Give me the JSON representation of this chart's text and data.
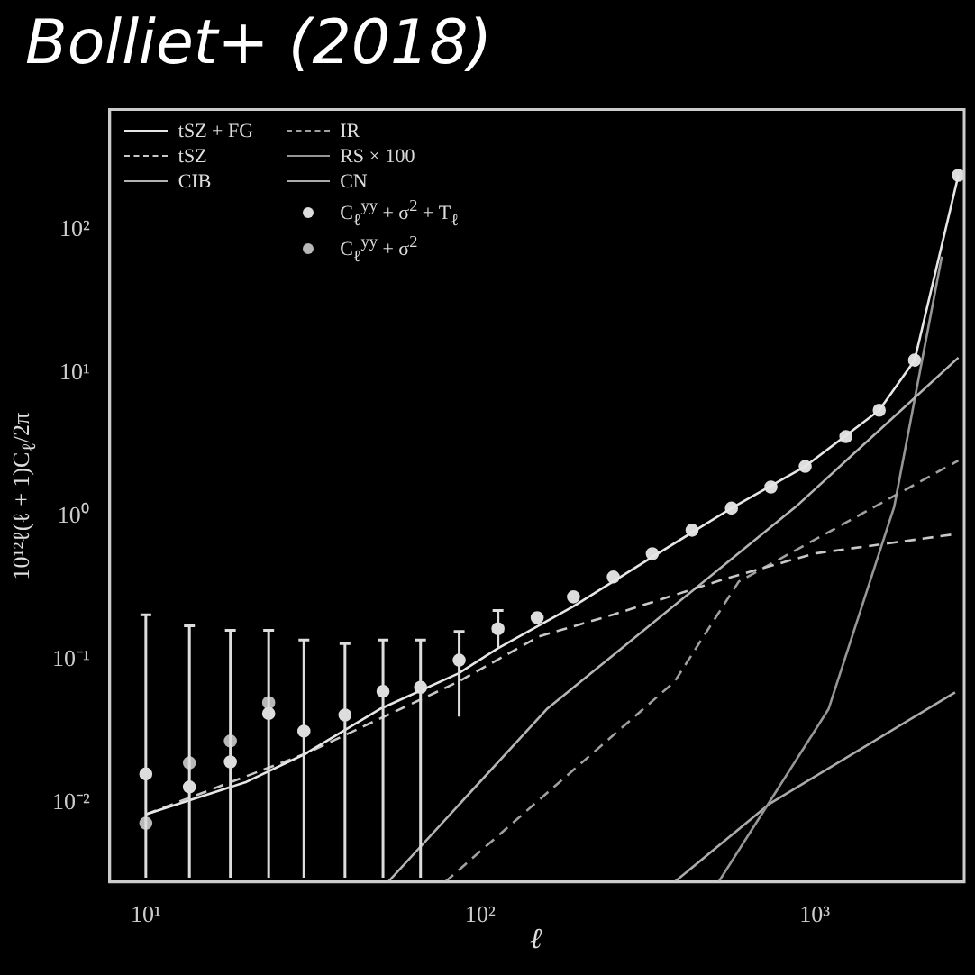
{
  "chart_data": {
    "type": "line",
    "title": "Bolliet+ (2018)",
    "xlabel": "ℓ",
    "ylabel": "10¹²ℓ(ℓ + 1)C$_{ℓ}$/2π",
    "log": "xy",
    "legend": "top left",
    "marker": "none",
    "xlim": [
      7.8,
      2800
    ],
    "ylim": [
      0.0028,
      690
    ],
    "xticks": [
      {
        "value": 10,
        "label": "10¹"
      },
      {
        "value": 100,
        "label": "10²"
      },
      {
        "value": 1000,
        "label": "10³"
      }
    ],
    "yticks": [
      {
        "value": 0.01,
        "label": "10⁻²"
      },
      {
        "value": 0.1,
        "label": "10⁻¹"
      },
      {
        "value": 1,
        "label": "10⁰"
      },
      {
        "value": 10,
        "label": "10¹"
      },
      {
        "value": 100,
        "label": "10²"
      }
    ],
    "series": [
      {
        "name": "tSZ + FG",
        "color": "#e6e6e6",
        "line_style": "solid",
        "x": [
          10,
          20,
          30,
          50,
          86,
          113,
          190,
          327,
          564,
          937,
          1560,
          1990,
          2690
        ],
        "values": [
          0.0083,
          0.014,
          0.022,
          0.045,
          0.08,
          0.12,
          0.235,
          0.52,
          1.14,
          2.23,
          5.5,
          12.3,
          240
        ]
      },
      {
        "name": "tSZ",
        "color": "#c8c8c8",
        "line_style": "dashed",
        "x": [
          10,
          30,
          86,
          150,
          250,
          540,
          1000,
          2630
        ],
        "values": [
          0.0083,
          0.022,
          0.07,
          0.145,
          0.206,
          0.366,
          0.55,
          0.75
        ]
      },
      {
        "name": "CIB",
        "color": "#b4b4b4",
        "line_style": "solid",
        "x": [
          53,
          158,
          880,
          2690
        ],
        "values": [
          0.0028,
          0.045,
          1.17,
          12.8
        ]
      },
      {
        "name": "IR",
        "color": "#a0a0a0",
        "line_style": "dashed",
        "x": [
          78.5,
          381,
          593,
          2690
        ],
        "values": [
          0.0028,
          0.07,
          0.35,
          2.45
        ]
      },
      {
        "name": "RS × 100",
        "color": "#969696",
        "line_style": "solid",
        "x": [
          516,
          1100,
          1730,
          2400
        ],
        "values": [
          0.0028,
          0.045,
          1.17,
          65
        ]
      },
      {
        "name": "CN",
        "color": "#aaaaaa",
        "line_style": "solid",
        "x": [
          381,
          736,
          2630
        ],
        "values": [
          0.0028,
          0.0099,
          0.059
        ]
      },
      {
        "name": "C$_{ℓ}$$^{yy}$ + σ$^{2}$ + T$_{ℓ}$",
        "type": "scatter",
        "marker": "circle",
        "color": "#dddddd",
        "x": [
          10,
          13.5,
          17.9,
          23.3,
          29.7,
          39.4,
          51.2,
          66.3,
          86.5,
          113,
          148,
          190,
          250,
          327,
          430,
          564,
          740,
          937,
          1240,
          1560,
          1990,
          2690
        ],
        "values": [
          0.0159,
          0.0129,
          0.0193,
          0.042,
          0.0316,
          0.041,
          0.06,
          0.064,
          0.099,
          0.164,
          0.196,
          0.274,
          0.377,
          0.548,
          0.8,
          1.14,
          1.6,
          2.23,
          3.6,
          5.5,
          12.3,
          240
        ],
        "errors": [
          [
            0.003,
            0.205
          ],
          [
            0.003,
            0.172
          ],
          [
            0.003,
            0.16
          ],
          [
            0.003,
            0.16
          ],
          [
            0.003,
            0.137
          ],
          [
            0.003,
            0.129
          ],
          [
            0.003,
            0.137
          ],
          [
            0.003,
            0.137
          ],
          [
            0.04,
            0.157
          ],
          [
            0.12,
            0.22
          ],
          null,
          null,
          null,
          null,
          null,
          null,
          null,
          null,
          null,
          null,
          null,
          null
        ]
      },
      {
        "name": "C$_{ℓ}$$^{yy}$ + σ$^{2}$",
        "type": "scatter",
        "marker": "circle",
        "color": "#b8b8b8",
        "x": [
          10,
          13.5,
          17.9,
          23.3
        ],
        "values": [
          0.0072,
          0.019,
          0.027,
          0.05
        ]
      }
    ]
  }
}
